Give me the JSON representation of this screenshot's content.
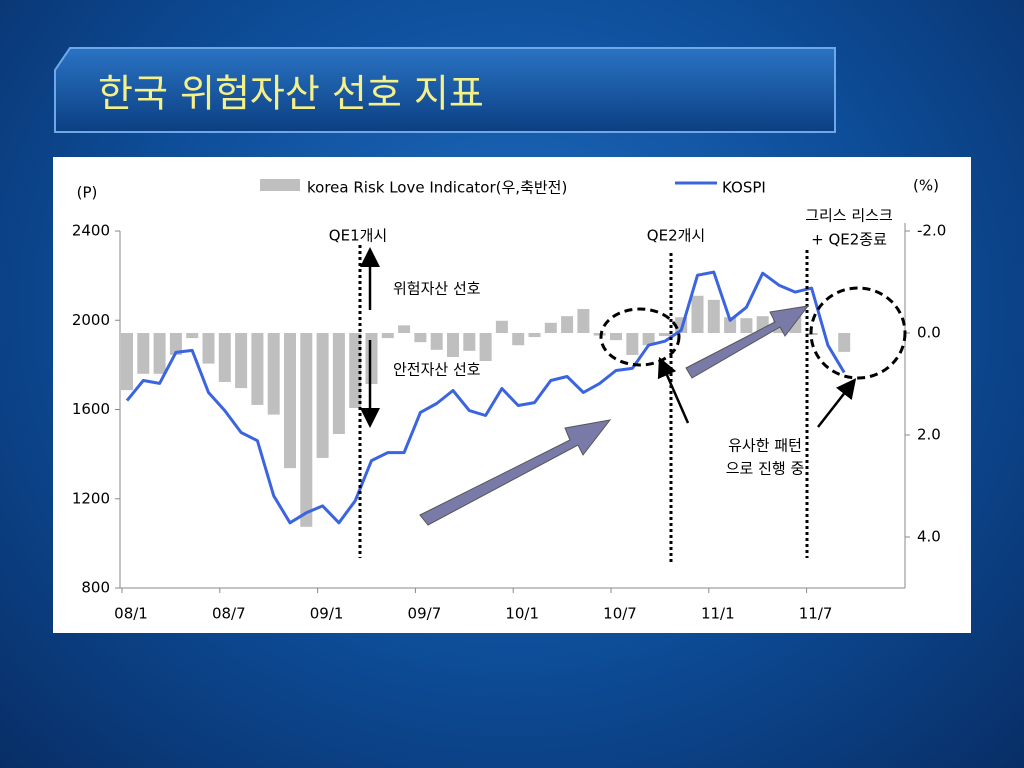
{
  "title": "한국 위험자산 선호 지표",
  "chart_data": {
    "type": "combo",
    "categories": [
      "08/1",
      null,
      null,
      null,
      null,
      null,
      "08/7",
      null,
      null,
      null,
      null,
      null,
      "09/1",
      null,
      null,
      null,
      null,
      null,
      "09/7",
      null,
      null,
      null,
      null,
      null,
      "10/1",
      null,
      null,
      null,
      null,
      null,
      "10/7",
      null,
      null,
      null,
      null,
      null,
      "11/1",
      null,
      null,
      null,
      null,
      null,
      "11/7",
      null,
      null,
      null,
      null,
      null
    ],
    "series": [
      {
        "name": "korea Risk Love Indicator(우,축반전)",
        "type": "bar",
        "axis": "y2",
        "color": "#bfbfbf",
        "values": [
          1.12,
          0.8,
          0.8,
          0.43,
          0.1,
          0.6,
          0.96,
          1.08,
          1.41,
          1.6,
          2.65,
          3.8,
          2.45,
          1.98,
          1.47,
          1.0,
          0.1,
          -0.15,
          0.18,
          0.33,
          0.47,
          0.35,
          0.55,
          -0.24,
          0.24,
          0.08,
          -0.2,
          -0.33,
          -0.47,
          0.05,
          0.14,
          0.43,
          0.24,
          0.06,
          -0.31,
          -0.73,
          -0.65,
          -0.31,
          -0.29,
          -0.33,
          -0.33,
          -0.41,
          0.04,
          null,
          0.37,
          null,
          null,
          null
        ]
      },
      {
        "name": "KOSPI",
        "type": "line",
        "color": "#3a64e0",
        "values": [
          1640,
          1730,
          1717,
          1856,
          1865,
          1676,
          1595,
          1497,
          1460,
          1213,
          1092,
          1137,
          1168,
          1092,
          1191,
          1371,
          1407,
          1407,
          1587,
          1627,
          1685,
          1595,
          1573,
          1694,
          1618,
          1631,
          1730,
          1748,
          1676,
          1717,
          1775,
          1784,
          1888,
          1906,
          1955,
          2202,
          2216,
          2000,
          2058,
          2211,
          2157,
          2126,
          2144,
          1888,
          1766,
          null,
          null,
          null
        ]
      }
    ],
    "y_label": "(P)",
    "y2_label": "(%)",
    "ylim": [
      800,
      2400
    ],
    "yticks": [
      800,
      1200,
      1600,
      2000,
      2400
    ],
    "y2lim": [
      5,
      -2
    ],
    "y2_inverted": true,
    "y2ticks": [
      {
        "value": -2,
        "label": "-2.0"
      },
      {
        "value": 0,
        "label": "0.0"
      },
      {
        "value": 2,
        "label": "2.0"
      },
      {
        "value": 4,
        "label": "4.0"
      }
    ],
    "annotations": [
      {
        "lines": [
          "QE1개시"
        ]
      },
      {
        "lines": [
          "QE2개시"
        ]
      },
      {
        "lines": [
          "그리스 리스크",
          "+ QE2종료"
        ]
      },
      {
        "lines": [
          "위험자산 선호"
        ]
      },
      {
        "lines": [
          "안전자산 선호"
        ]
      },
      {
        "lines": [
          "유사한 패턴",
          "으로 진행 중"
        ]
      }
    ]
  }
}
